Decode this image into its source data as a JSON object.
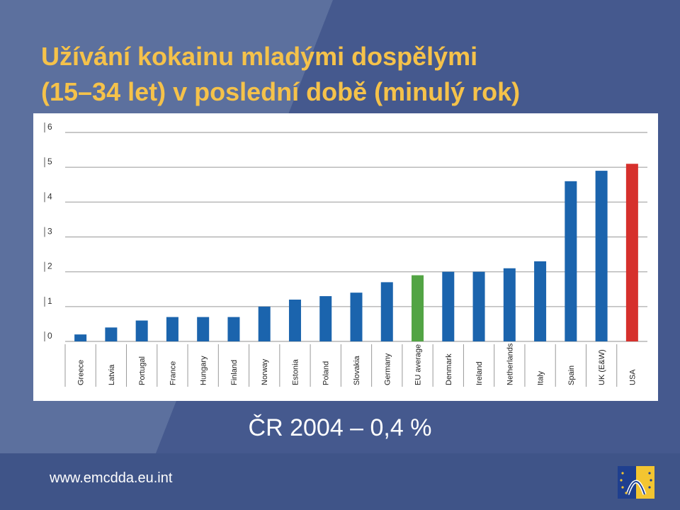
{
  "title_line1": "Užívání kokainu mladými dospělými",
  "title_line2": "(15–34 let) v poslední době (minulý rok)",
  "note": "ČR 2004 – 0,4 %",
  "footer_url": "www.emcdda.eu.int",
  "colors": {
    "title": "#f5c24a",
    "background": "#4a5f92",
    "bar_default": "#1b64ad",
    "bar_eu_average": "#52a444",
    "bar_usa": "#d6302c"
  },
  "chart_data": {
    "type": "bar",
    "categories": [
      "Greece",
      "Latvia",
      "Portugal",
      "France",
      "Hungary",
      "Finland",
      "Norway",
      "Estonia",
      "Poland",
      "Slovakia",
      "Germany",
      "EU average",
      "Denmark",
      "Ireland",
      "Netherlands",
      "Italy",
      "Spain",
      "UK (E&W)",
      "USA"
    ],
    "values": [
      0.2,
      0.4,
      0.6,
      0.7,
      0.7,
      0.7,
      1.0,
      1.2,
      1.3,
      1.4,
      1.7,
      1.9,
      2.0,
      2.0,
      2.1,
      2.3,
      4.6,
      4.9,
      5.1
    ],
    "highlight": {
      "EU average": "green",
      "USA": "red"
    },
    "yticks": [
      0,
      1,
      2,
      3,
      4,
      5,
      6
    ],
    "ylim": [
      0,
      6
    ],
    "grid": true,
    "legend": "none"
  }
}
